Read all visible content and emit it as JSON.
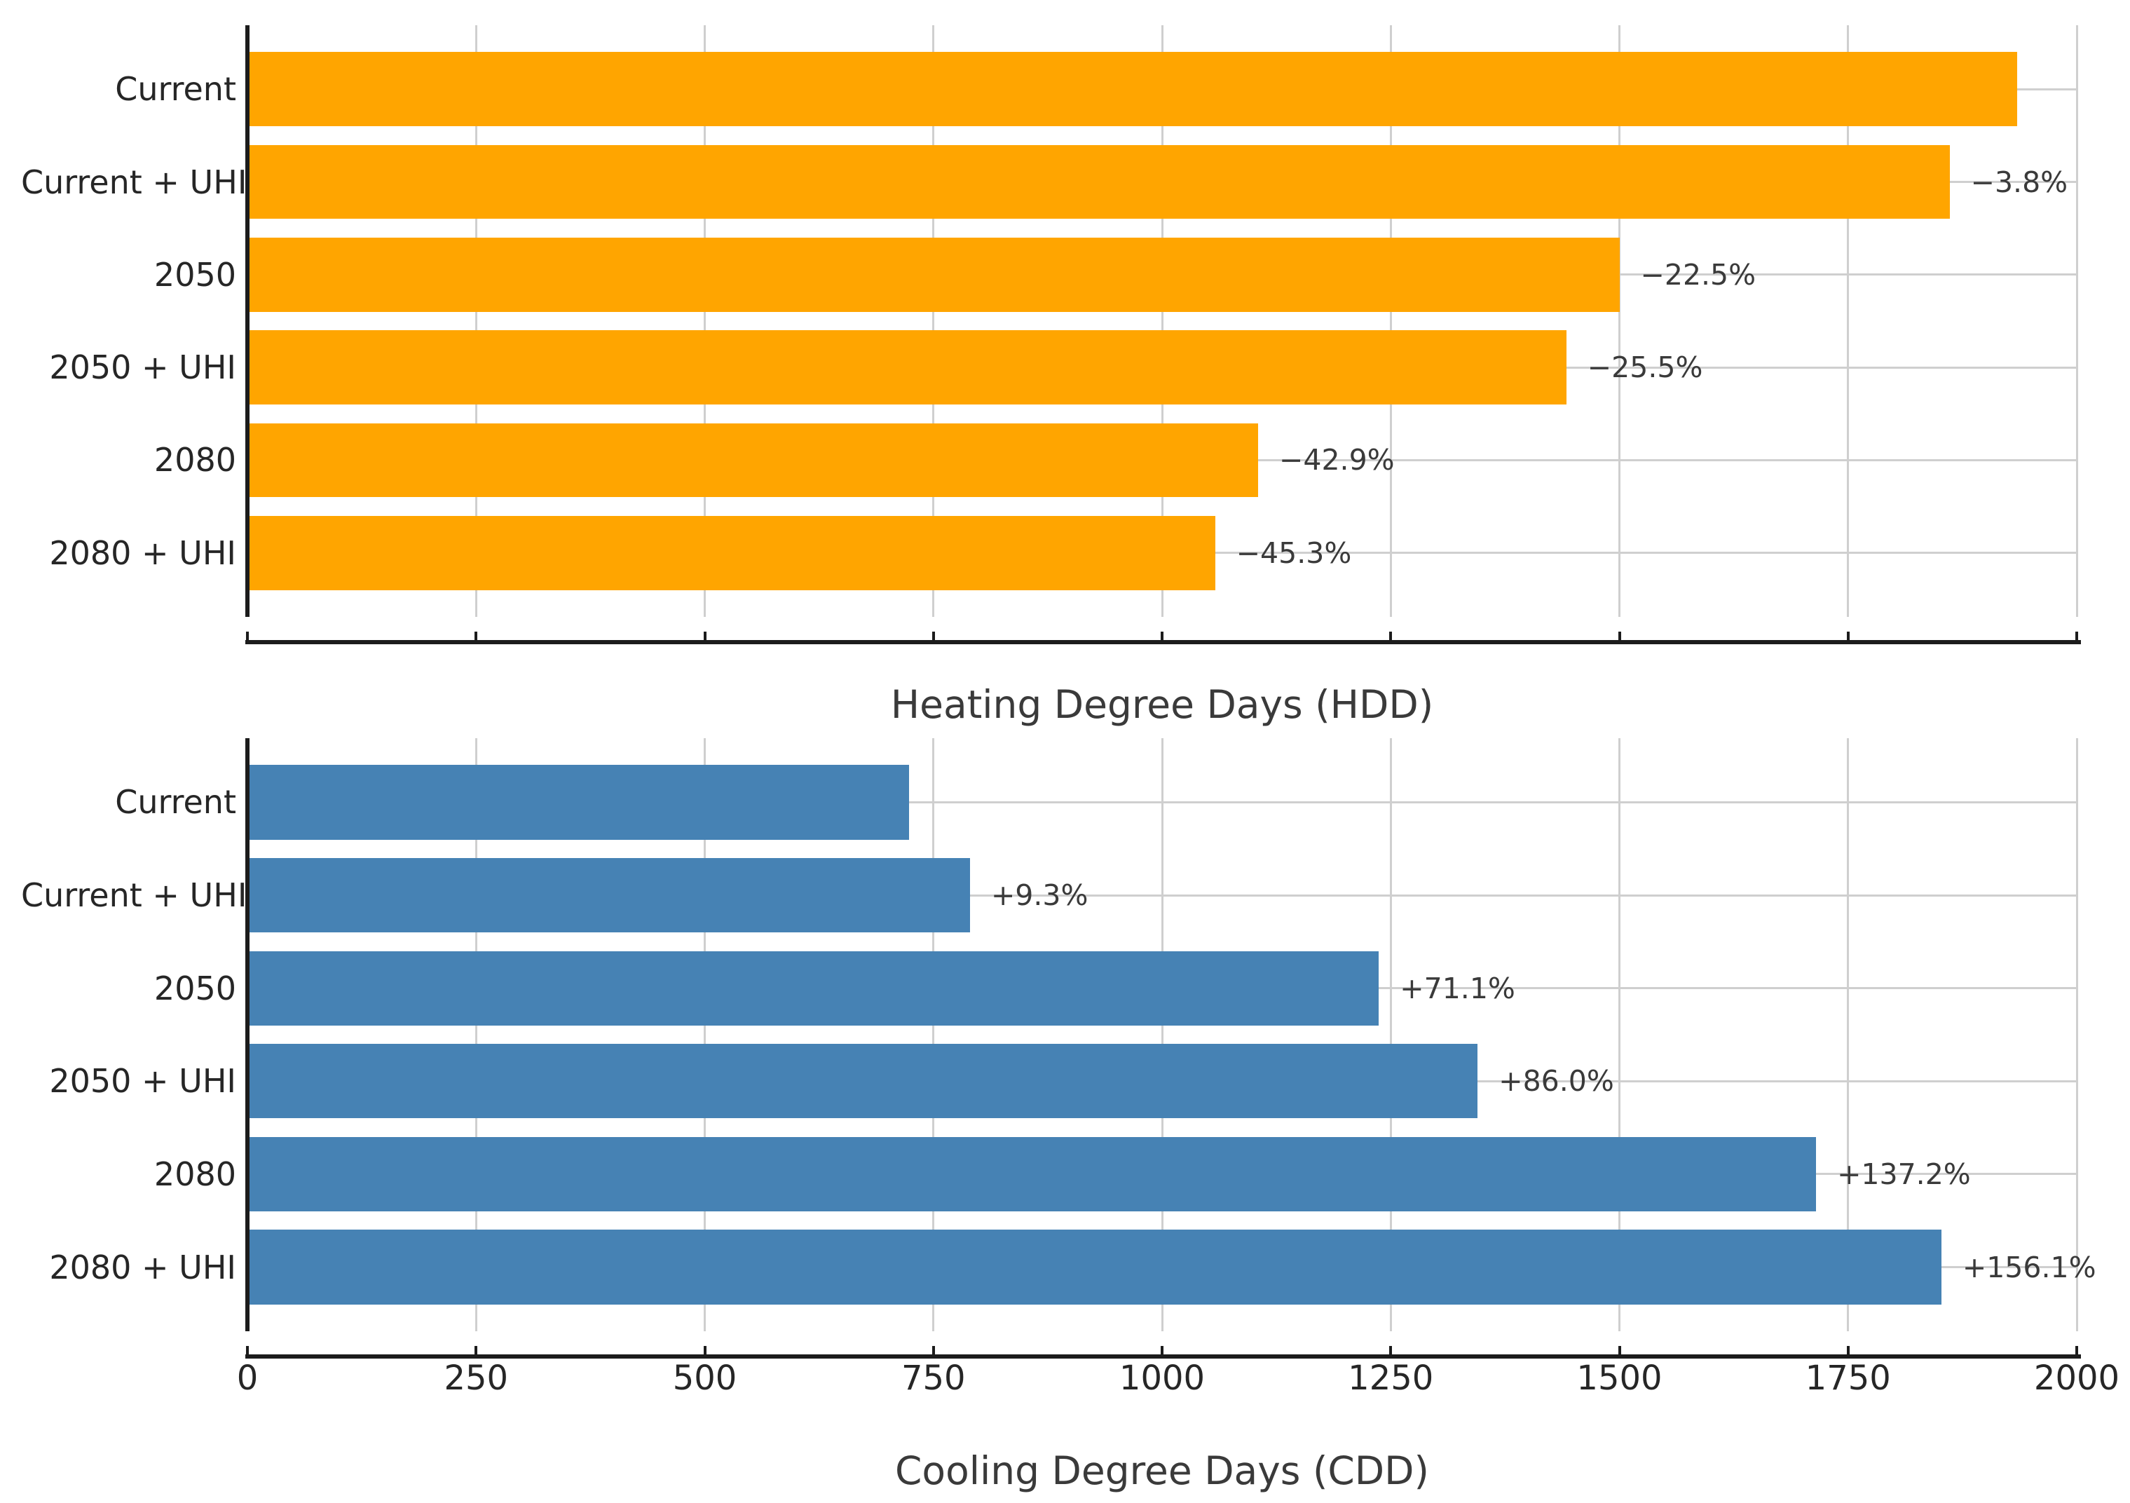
{
  "colors": {
    "background": "#ffffff",
    "hdd_bar": "#FFA500",
    "cdd_bar": "#4682B4",
    "grid": "#cfcfcf",
    "spine": "#1c1c1c",
    "tick_label": "#262626",
    "annotation": "#3a3a3a",
    "axis_title": "#3a3a3a"
  },
  "chart_data": [
    {
      "type": "bar",
      "orientation": "horizontal",
      "xlabel": "Heating Degree Days (HDD)",
      "categories": [
        "Current",
        "Current + UHI",
        "2050",
        "2050 + UHI",
        "2080",
        "2080 + UHI"
      ],
      "values": [
        1935,
        1861,
        1500,
        1442,
        1105,
        1058
      ],
      "bar_labels": [
        "",
        "−3.8%",
        "−22.5%",
        "−25.5%",
        "−42.9%",
        "−45.3%"
      ],
      "bar_color": "#FFA500",
      "xlim": [
        0,
        2000
      ],
      "xticks": [
        0,
        250,
        500,
        750,
        1000,
        1250,
        1500,
        1750,
        2000
      ],
      "xticklabels": [
        "0",
        "250",
        "500",
        "750",
        "1000",
        "1250",
        "1500",
        "1750",
        "2000"
      ],
      "xticklabels_visible": false,
      "grid": true,
      "legend": null,
      "title": ""
    },
    {
      "type": "bar",
      "orientation": "horizontal",
      "xlabel": "Cooling Degree Days (CDD)",
      "categories": [
        "Current",
        "Current + UHI",
        "2050",
        "2050 + UHI",
        "2080",
        "2080 + UHI"
      ],
      "values": [
        723,
        790,
        1237,
        1345,
        1715,
        1852
      ],
      "bar_labels": [
        "",
        "+9.3%",
        "+71.1%",
        "+86.0%",
        "+137.2%",
        "+156.1%"
      ],
      "bar_color": "#4682B4",
      "xlim": [
        0,
        2000
      ],
      "xticks": [
        0,
        250,
        500,
        750,
        1000,
        1250,
        1500,
        1750,
        2000
      ],
      "xticklabels": [
        "0",
        "250",
        "500",
        "750",
        "1000",
        "1250",
        "1500",
        "1750",
        "2000"
      ],
      "xticklabels_visible": true,
      "grid": true,
      "legend": null,
      "title": ""
    }
  ]
}
